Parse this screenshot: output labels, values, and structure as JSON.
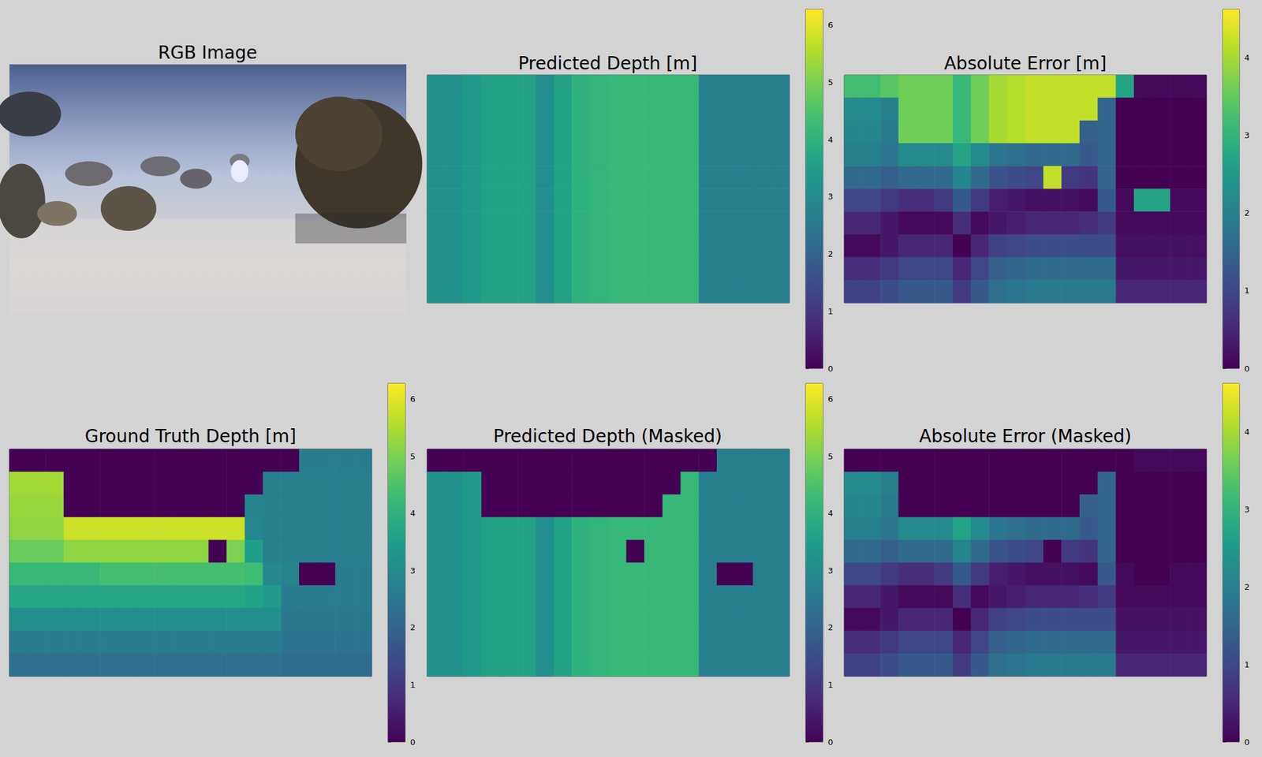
{
  "chart_data": [
    {
      "type": "image",
      "title": "RGB Image"
    },
    {
      "type": "heatmap",
      "title": "Predicted Depth [m]",
      "tick_labels": false,
      "colorbar_range": [
        0,
        6.27
      ],
      "colorbar_ticks": [
        0,
        1,
        2,
        3,
        4,
        5,
        6
      ],
      "cells": [
        [
          3.2,
          3.2,
          3.4,
          3.6,
          3.6,
          3.6,
          3.1,
          3.6,
          4.0,
          4.1,
          4.2,
          4.2,
          4.2,
          4.2,
          4.2,
          2.7,
          2.7,
          2.7,
          2.7,
          2.7
        ],
        [
          3.2,
          3.2,
          3.4,
          3.6,
          3.6,
          3.6,
          3.1,
          3.6,
          4.0,
          4.1,
          4.2,
          4.2,
          4.2,
          4.2,
          4.2,
          2.7,
          2.7,
          2.7,
          2.7,
          2.7
        ],
        [
          3.2,
          3.2,
          3.4,
          3.6,
          3.6,
          3.6,
          3.1,
          3.6,
          4.0,
          4.1,
          4.2,
          4.2,
          4.2,
          4.2,
          4.2,
          2.7,
          2.7,
          2.7,
          2.7,
          2.7
        ],
        [
          3.2,
          3.2,
          3.4,
          3.6,
          3.6,
          3.6,
          3.1,
          3.6,
          4.0,
          4.1,
          4.2,
          4.2,
          4.2,
          4.2,
          4.2,
          2.7,
          2.7,
          2.7,
          2.7,
          2.7
        ],
        [
          3.2,
          3.2,
          3.4,
          3.6,
          3.6,
          3.6,
          3.1,
          3.6,
          4.0,
          4.1,
          4.2,
          4.2,
          4.2,
          4.2,
          4.2,
          2.7,
          2.7,
          2.7,
          2.7,
          2.7
        ],
        [
          3.2,
          3.2,
          3.4,
          3.6,
          3.6,
          3.6,
          3.1,
          3.6,
          4.0,
          4.1,
          4.2,
          4.2,
          4.2,
          4.2,
          4.2,
          2.7,
          2.7,
          2.7,
          2.7,
          2.7
        ],
        [
          3.2,
          3.2,
          3.4,
          3.6,
          3.6,
          3.6,
          3.1,
          3.6,
          4.0,
          4.1,
          4.2,
          4.2,
          4.2,
          4.2,
          4.2,
          2.7,
          2.7,
          2.7,
          2.7,
          2.7
        ],
        [
          3.2,
          3.2,
          3.4,
          3.6,
          3.6,
          3.6,
          3.1,
          3.6,
          4.0,
          4.1,
          4.2,
          4.2,
          4.2,
          4.2,
          4.2,
          2.7,
          2.7,
          2.7,
          2.7,
          2.7
        ],
        [
          3.2,
          3.2,
          3.4,
          3.6,
          3.6,
          3.6,
          3.1,
          3.6,
          4.0,
          4.1,
          4.2,
          4.2,
          4.2,
          4.2,
          4.2,
          2.7,
          2.7,
          2.7,
          2.7,
          2.7
        ],
        [
          3.2,
          3.2,
          3.4,
          3.6,
          3.6,
          3.6,
          3.1,
          3.6,
          4.0,
          4.1,
          4.2,
          4.2,
          4.2,
          4.2,
          4.2,
          2.7,
          2.7,
          2.7,
          2.7,
          2.7
        ]
      ]
    },
    {
      "type": "heatmap",
      "title": "Absolute Error [m]",
      "tick_labels": false,
      "colorbar_range": [
        0,
        4.62
      ],
      "colorbar_ticks": [
        0,
        1,
        2,
        3,
        4
      ],
      "cells": [
        [
          3.2,
          3.2,
          3.4,
          3.6,
          3.6,
          3.6,
          3.1,
          3.6,
          4.0,
          4.1,
          4.2,
          4.2,
          4.2,
          4.2,
          4.2,
          2.7,
          0.1,
          0.1,
          0.1,
          0.1
        ],
        [
          2.2,
          2.2,
          2.0,
          3.6,
          3.6,
          3.6,
          3.1,
          3.6,
          4.0,
          4.1,
          4.2,
          4.2,
          4.2,
          4.2,
          1.5,
          0.0,
          0.0,
          0.0,
          0.0,
          0.0
        ],
        [
          2.1,
          2.1,
          1.9,
          3.6,
          3.6,
          3.6,
          3.1,
          3.6,
          4.0,
          4.1,
          4.2,
          4.2,
          4.2,
          1.4,
          1.5,
          0.0,
          0.0,
          0.0,
          0.0,
          0.0
        ],
        [
          2.0,
          2.0,
          1.8,
          2.2,
          2.2,
          2.2,
          2.7,
          2.2,
          1.8,
          1.7,
          1.6,
          1.6,
          1.6,
          1.3,
          1.5,
          0.0,
          0.0,
          0.0,
          0.0,
          0.0
        ],
        [
          1.6,
          1.6,
          1.4,
          1.6,
          1.6,
          1.6,
          2.1,
          1.6,
          1.2,
          1.1,
          1.0,
          4.2,
          0.8,
          0.7,
          1.5,
          0.0,
          0.0,
          0.0,
          0.0,
          0.0
        ],
        [
          1.0,
          1.0,
          0.8,
          0.6,
          0.6,
          0.8,
          1.3,
          0.8,
          0.4,
          0.3,
          0.2,
          0.2,
          0.2,
          0.1,
          1.3,
          0.1,
          2.7,
          2.7,
          0.1,
          0.1
        ],
        [
          0.5,
          0.5,
          0.3,
          0.1,
          0.1,
          0.1,
          0.6,
          0.1,
          0.3,
          0.4,
          0.5,
          0.5,
          0.5,
          0.6,
          0.8,
          0.1,
          0.1,
          0.1,
          0.1,
          0.1
        ],
        [
          0.1,
          0.1,
          0.3,
          0.5,
          0.5,
          0.5,
          0.0,
          0.5,
          0.9,
          1.0,
          1.1,
          1.1,
          1.1,
          1.1,
          1.1,
          0.2,
          0.2,
          0.2,
          0.2,
          0.2
        ],
        [
          0.6,
          0.6,
          0.8,
          1.0,
          1.0,
          1.0,
          0.5,
          1.0,
          1.4,
          1.5,
          1.6,
          1.6,
          1.6,
          1.6,
          1.6,
          0.3,
          0.3,
          0.3,
          0.3,
          0.3
        ],
        [
          0.9,
          0.9,
          1.1,
          1.3,
          1.3,
          1.3,
          0.8,
          1.3,
          1.7,
          1.8,
          1.9,
          1.9,
          1.9,
          1.9,
          1.9,
          0.5,
          0.5,
          0.5,
          0.5,
          0.5
        ]
      ]
    },
    {
      "type": "heatmap",
      "title": "Ground Truth Depth [m]",
      "tick_labels": false,
      "colorbar_range": [
        0,
        6.27
      ],
      "colorbar_ticks": [
        0,
        1,
        2,
        3,
        4,
        5,
        6
      ],
      "cells": [
        [
          0,
          0,
          0,
          0,
          0,
          0,
          0,
          0,
          0,
          0,
          0,
          0,
          0,
          0,
          0,
          0,
          2.6,
          2.6,
          2.6,
          2.6
        ],
        [
          5.4,
          5.4,
          5.4,
          0,
          0,
          0,
          0,
          0,
          0,
          0,
          0,
          0,
          0,
          0,
          2.7,
          2.7,
          2.7,
          2.7,
          2.7,
          2.7
        ],
        [
          5.3,
          5.3,
          5.3,
          0,
          0,
          0,
          0,
          0,
          0,
          0,
          0,
          0,
          0,
          2.8,
          2.7,
          2.7,
          2.7,
          2.7,
          2.7,
          2.7
        ],
        [
          5.2,
          5.2,
          5.2,
          5.8,
          5.8,
          5.8,
          5.8,
          5.8,
          5.8,
          5.8,
          5.8,
          5.8,
          5.8,
          2.9,
          2.7,
          2.7,
          2.7,
          2.7,
          2.7,
          2.7
        ],
        [
          4.8,
          4.8,
          4.8,
          5.2,
          5.2,
          5.2,
          5.2,
          5.2,
          5.2,
          5.2,
          5.2,
          0,
          5.0,
          3.5,
          2.7,
          2.7,
          2.7,
          2.7,
          2.7,
          2.7
        ],
        [
          4.2,
          4.2,
          4.2,
          4.2,
          4.2,
          4.4,
          4.4,
          4.4,
          4.4,
          4.4,
          4.4,
          4.4,
          4.4,
          4.3,
          2.9,
          2.8,
          0,
          0,
          2.6,
          2.6
        ],
        [
          3.7,
          3.7,
          3.7,
          3.7,
          3.7,
          3.7,
          3.7,
          3.7,
          3.7,
          3.7,
          3.7,
          3.7,
          3.7,
          3.6,
          3.4,
          2.6,
          2.6,
          2.6,
          2.6,
          2.6
        ],
        [
          3.1,
          3.1,
          3.1,
          3.1,
          3.1,
          3.1,
          3.1,
          3.1,
          3.1,
          3.1,
          3.1,
          3.1,
          3.1,
          3.1,
          3.1,
          2.5,
          2.5,
          2.5,
          2.5,
          2.5
        ],
        [
          2.6,
          2.6,
          2.6,
          2.6,
          2.6,
          2.6,
          2.6,
          2.6,
          2.6,
          2.6,
          2.6,
          2.6,
          2.6,
          2.6,
          2.6,
          2.4,
          2.4,
          2.4,
          2.4,
          2.4
        ],
        [
          2.3,
          2.3,
          2.3,
          2.3,
          2.3,
          2.3,
          2.3,
          2.3,
          2.3,
          2.3,
          2.3,
          2.3,
          2.3,
          2.3,
          2.3,
          2.2,
          2.2,
          2.2,
          2.2,
          2.2
        ]
      ]
    },
    {
      "type": "heatmap",
      "title": "Predicted Depth (Masked)",
      "tick_labels": false,
      "colorbar_range": [
        0,
        6.27
      ],
      "colorbar_ticks": [
        0,
        1,
        2,
        3,
        4,
        5,
        6
      ],
      "cells": [
        [
          0,
          0,
          0,
          0,
          0,
          0,
          0,
          0,
          0,
          0,
          0,
          0,
          0,
          0,
          0,
          0,
          2.7,
          2.7,
          2.7,
          2.7
        ],
        [
          3.2,
          3.2,
          3.4,
          0,
          0,
          0,
          0,
          0,
          0,
          0,
          0,
          0,
          0,
          0,
          4.2,
          2.7,
          2.7,
          2.7,
          2.7,
          2.7
        ],
        [
          3.2,
          3.2,
          3.4,
          0,
          0,
          0,
          0,
          0,
          0,
          0,
          0,
          0,
          0,
          4.2,
          4.2,
          2.7,
          2.7,
          2.7,
          2.7,
          2.7
        ],
        [
          3.2,
          3.2,
          3.4,
          3.6,
          3.6,
          3.6,
          3.1,
          3.6,
          4.0,
          4.1,
          4.2,
          4.2,
          4.2,
          4.2,
          4.2,
          2.7,
          2.7,
          2.7,
          2.7,
          2.7
        ],
        [
          3.2,
          3.2,
          3.4,
          3.6,
          3.6,
          3.6,
          3.1,
          3.6,
          4.0,
          4.1,
          4.2,
          0,
          4.2,
          4.2,
          4.2,
          2.7,
          2.7,
          2.7,
          2.7,
          2.7
        ],
        [
          3.2,
          3.2,
          3.4,
          3.6,
          3.6,
          3.6,
          3.1,
          3.6,
          4.0,
          4.1,
          4.2,
          4.2,
          4.2,
          4.2,
          4.2,
          2.7,
          0,
          0,
          2.7,
          2.7
        ],
        [
          3.2,
          3.2,
          3.4,
          3.6,
          3.6,
          3.6,
          3.1,
          3.6,
          4.0,
          4.1,
          4.2,
          4.2,
          4.2,
          4.2,
          4.2,
          2.7,
          2.7,
          2.7,
          2.7,
          2.7
        ],
        [
          3.2,
          3.2,
          3.4,
          3.6,
          3.6,
          3.6,
          3.1,
          3.6,
          4.0,
          4.1,
          4.2,
          4.2,
          4.2,
          4.2,
          4.2,
          2.7,
          2.7,
          2.7,
          2.7,
          2.7
        ],
        [
          3.2,
          3.2,
          3.4,
          3.6,
          3.6,
          3.6,
          3.1,
          3.6,
          4.0,
          4.1,
          4.2,
          4.2,
          4.2,
          4.2,
          4.2,
          2.7,
          2.7,
          2.7,
          2.7,
          2.7
        ],
        [
          3.2,
          3.2,
          3.4,
          3.6,
          3.6,
          3.6,
          3.1,
          3.6,
          4.0,
          4.1,
          4.2,
          4.2,
          4.2,
          4.2,
          4.2,
          2.7,
          2.7,
          2.7,
          2.7,
          2.7
        ]
      ]
    },
    {
      "type": "heatmap",
      "title": "Absolute Error (Masked)",
      "tick_labels": false,
      "colorbar_range": [
        0,
        4.62
      ],
      "colorbar_ticks": [
        0,
        1,
        2,
        3,
        4
      ],
      "cells": [
        [
          0,
          0,
          0,
          0,
          0,
          0,
          0,
          0,
          0,
          0,
          0,
          0,
          0,
          0,
          0,
          0,
          0.1,
          0.1,
          0.1,
          0.1
        ],
        [
          2.2,
          2.2,
          2.0,
          0,
          0,
          0,
          0,
          0,
          0,
          0,
          0,
          0,
          0,
          0,
          1.5,
          0.0,
          0.0,
          0.0,
          0.0,
          0.0
        ],
        [
          2.1,
          2.1,
          1.9,
          0,
          0,
          0,
          0,
          0,
          0,
          0,
          0,
          0,
          0,
          1.4,
          1.5,
          0.0,
          0.0,
          0.0,
          0.0,
          0.0
        ],
        [
          2.0,
          2.0,
          1.8,
          2.2,
          2.2,
          2.2,
          2.7,
          2.2,
          1.8,
          1.7,
          1.6,
          1.6,
          1.6,
          1.3,
          1.5,
          0.0,
          0.0,
          0.0,
          0.0,
          0.0
        ],
        [
          1.6,
          1.6,
          1.4,
          1.6,
          1.6,
          1.6,
          2.1,
          1.6,
          1.2,
          1.1,
          1.0,
          0,
          0.8,
          0.7,
          1.5,
          0.0,
          0.0,
          0.0,
          0.0,
          0.0
        ],
        [
          1.0,
          1.0,
          0.8,
          0.6,
          0.6,
          0.8,
          1.3,
          0.8,
          0.4,
          0.3,
          0.2,
          0.2,
          0.2,
          0.1,
          1.3,
          0.1,
          0,
          0,
          0.1,
          0.1
        ],
        [
          0.5,
          0.5,
          0.3,
          0.1,
          0.1,
          0.1,
          0.6,
          0.1,
          0.3,
          0.4,
          0.5,
          0.5,
          0.5,
          0.6,
          0.8,
          0.1,
          0.1,
          0.1,
          0.1,
          0.1
        ],
        [
          0.1,
          0.1,
          0.3,
          0.5,
          0.5,
          0.5,
          0.0,
          0.5,
          0.9,
          1.0,
          1.1,
          1.1,
          1.1,
          1.1,
          1.1,
          0.2,
          0.2,
          0.2,
          0.2,
          0.2
        ],
        [
          0.6,
          0.6,
          0.8,
          1.0,
          1.0,
          1.0,
          0.5,
          1.0,
          1.4,
          1.5,
          1.6,
          1.6,
          1.6,
          1.6,
          1.6,
          0.3,
          0.3,
          0.3,
          0.3,
          0.3
        ],
        [
          0.9,
          0.9,
          1.1,
          1.3,
          1.3,
          1.3,
          0.8,
          1.3,
          1.7,
          1.8,
          1.9,
          1.9,
          1.9,
          1.9,
          1.9,
          0.5,
          0.5,
          0.5,
          0.5,
          0.5
        ]
      ]
    }
  ]
}
